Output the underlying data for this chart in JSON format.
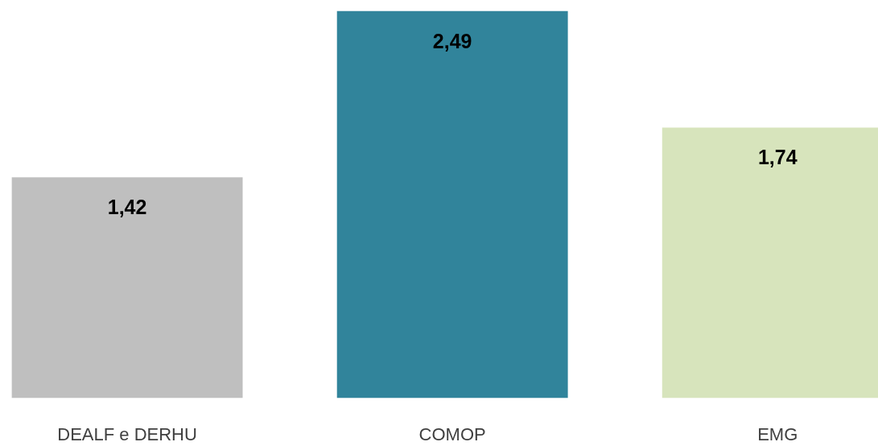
{
  "chart_data": {
    "type": "bar",
    "categories": [
      "DEALF e DERHU",
      "COMOP",
      "EMG"
    ],
    "values": [
      1.42,
      2.49,
      1.74
    ],
    "colors": [
      "#bfbfbf",
      "#31849b",
      "#d7e4bc"
    ],
    "value_labels": [
      "1,42",
      "2,49",
      "1,74"
    ],
    "grid": false
  }
}
